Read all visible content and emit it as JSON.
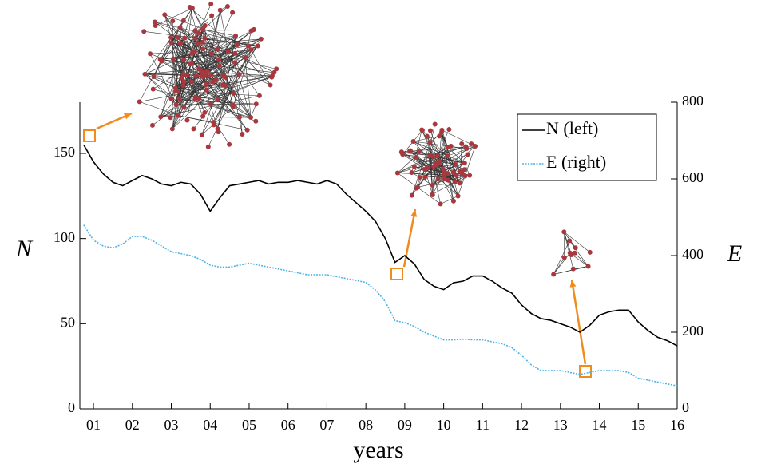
{
  "chart_data": {
    "type": "line",
    "x_label": "years",
    "y_label": "N",
    "y2_label": "E",
    "xlim": [
      0.65,
      16
    ],
    "ylim": [
      0,
      180
    ],
    "y2lim": [
      0,
      800
    ],
    "xticks": [
      {
        "value": 1,
        "label": "01"
      },
      {
        "value": 2,
        "label": "02"
      },
      {
        "value": 3,
        "label": "03"
      },
      {
        "value": 4,
        "label": "04"
      },
      {
        "value": 5,
        "label": "05"
      },
      {
        "value": 6,
        "label": "06"
      },
      {
        "value": 7,
        "label": "07"
      },
      {
        "value": 8,
        "label": "08"
      },
      {
        "value": 9,
        "label": "09"
      },
      {
        "value": 10,
        "label": "10"
      },
      {
        "value": 11,
        "label": "11"
      },
      {
        "value": 12,
        "label": "12"
      },
      {
        "value": 13,
        "label": "13"
      },
      {
        "value": 14,
        "label": "14"
      },
      {
        "value": 15,
        "label": "15"
      },
      {
        "value": 16,
        "label": "16"
      }
    ],
    "yticks": [
      0,
      50,
      100,
      150
    ],
    "y2ticks": [
      0,
      200,
      400,
      600,
      800
    ],
    "x": [
      0.75,
      1,
      1.25,
      1.5,
      1.75,
      2,
      2.25,
      2.5,
      2.75,
      3,
      3.25,
      3.5,
      3.75,
      4,
      4.25,
      4.5,
      4.75,
      5,
      5.25,
      5.5,
      5.75,
      6,
      6.25,
      6.5,
      6.75,
      7,
      7.25,
      7.5,
      7.75,
      8,
      8.25,
      8.5,
      8.75,
      9,
      9.25,
      9.5,
      9.75,
      10,
      10.25,
      10.5,
      10.75,
      11,
      11.25,
      11.5,
      11.75,
      12,
      12.25,
      12.5,
      12.75,
      13,
      13.25,
      13.5,
      13.75,
      14,
      14.25,
      14.5,
      14.75,
      15,
      15.25,
      15.5,
      15.75,
      16
    ],
    "series": [
      {
        "name": "N (left)",
        "color": "#000000",
        "dash": "solid",
        "axis": "y",
        "values": [
          155,
          145,
          138,
          133,
          131,
          134,
          137,
          135,
          132,
          131,
          133,
          132,
          126,
          116,
          124,
          131,
          132,
          133,
          134,
          132,
          133,
          133,
          134,
          133,
          132,
          134,
          132,
          126,
          121,
          116,
          110,
          100,
          86,
          90,
          85,
          76,
          72,
          70,
          74,
          75,
          78,
          78,
          75,
          71,
          68,
          61,
          56,
          53,
          52,
          50,
          48,
          45,
          49,
          55,
          57,
          58,
          58,
          51,
          46,
          42,
          40,
          37
        ]
      },
      {
        "name": "E (right)",
        "color": "#4db3e6",
        "dash": "dotted",
        "axis": "y2",
        "values": [
          480,
          440,
          425,
          420,
          430,
          450,
          450,
          440,
          425,
          410,
          405,
          400,
          390,
          375,
          370,
          370,
          375,
          380,
          375,
          370,
          365,
          360,
          355,
          350,
          350,
          350,
          345,
          340,
          335,
          330,
          310,
          280,
          230,
          225,
          215,
          200,
          190,
          180,
          180,
          182,
          180,
          180,
          175,
          170,
          160,
          140,
          115,
          100,
          100,
          100,
          95,
          90,
          95,
          100,
          100,
          100,
          95,
          80,
          75,
          70,
          65,
          60
        ]
      }
    ],
    "legend": "upper right"
  }
}
